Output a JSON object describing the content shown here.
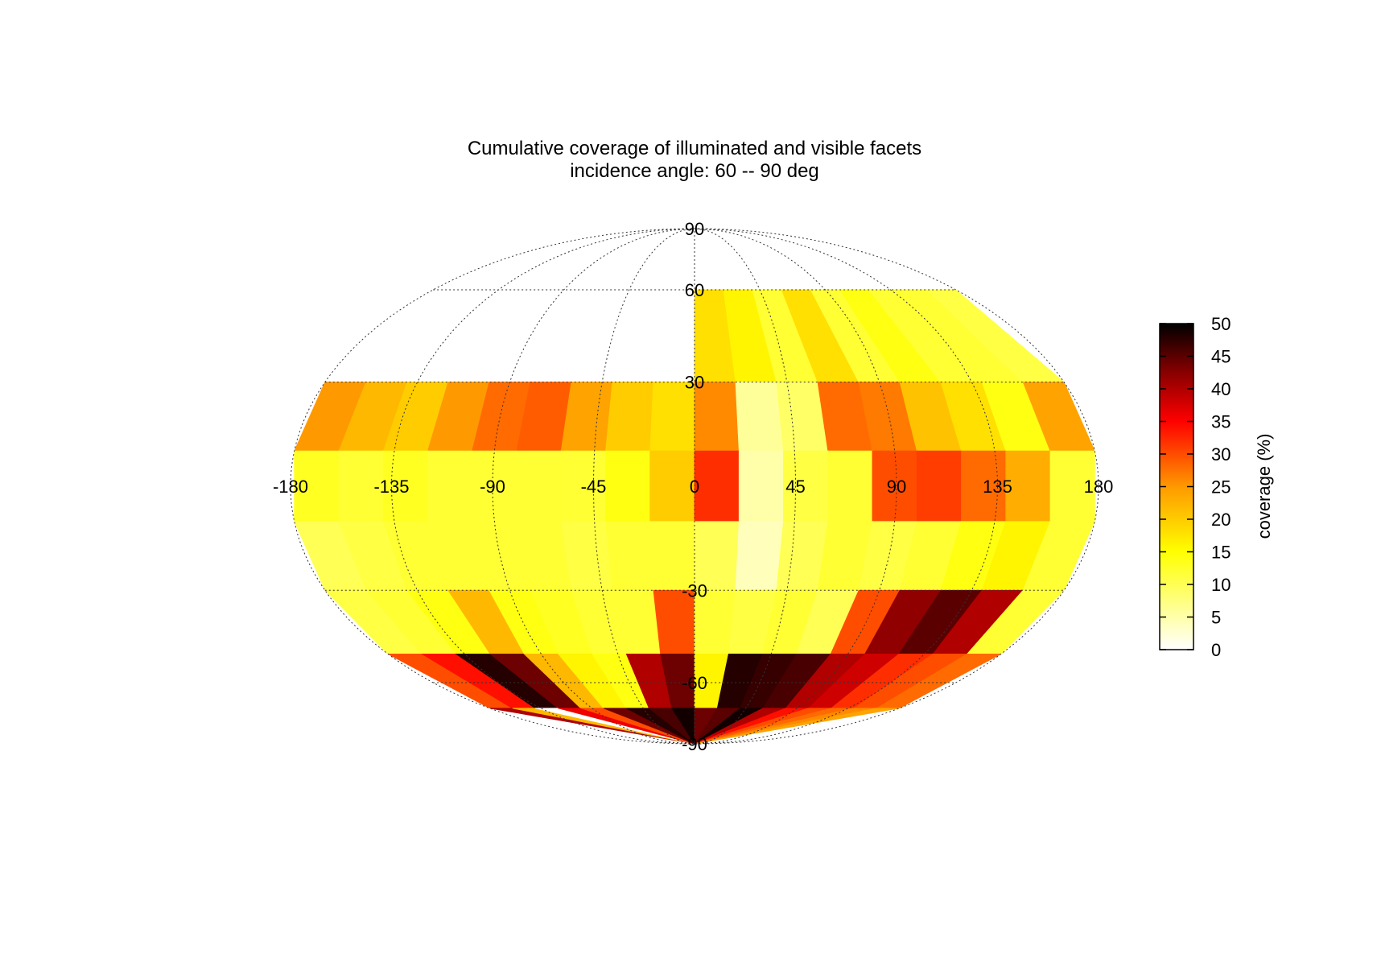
{
  "chart_data": {
    "type": "heatmap",
    "projection": "Mollweide (global map of facets)",
    "title": "Cumulative coverage of illuminated and visible facets",
    "subtitle": "incidence angle: 60 -- 90 deg",
    "x_ticks": [
      -180,
      -135,
      -90,
      -45,
      0,
      45,
      90,
      135,
      180
    ],
    "y_ticks": [
      90,
      60,
      30,
      -30,
      -60,
      -90
    ],
    "xlim": [
      -180,
      180
    ],
    "ylim": [
      -90,
      90
    ],
    "grid": true,
    "colorbar": {
      "label": "coverage (%)",
      "range": [
        0,
        50
      ],
      "ticks": [
        0,
        5,
        10,
        15,
        20,
        25,
        30,
        35,
        40,
        45,
        50
      ],
      "colormap": "hot (white → yellow → orange → red → black)",
      "colors": [
        "#ffffff",
        "#ffff00",
        "#ff9900",
        "#ff0000",
        "#880000",
        "#000000"
      ]
    },
    "lat_bands": [
      {
        "lat_range": [
          60,
          90
        ],
        "coverage_pct": [
          null,
          null,
          null,
          null,
          null,
          null,
          null,
          null,
          null,
          null,
          null,
          null,
          null,
          null,
          null,
          null,
          null,
          null
        ]
      },
      {
        "lat_range": [
          30,
          60
        ],
        "coverage_pct": [
          null,
          null,
          null,
          null,
          null,
          null,
          null,
          null,
          null,
          18,
          16,
          12,
          18,
          12,
          14,
          12,
          12,
          11
        ]
      },
      {
        "lat_range": [
          10,
          30
        ],
        "coverage_pct": [
          25,
          22,
          20,
          25,
          28,
          29,
          24,
          20,
          18,
          26,
          6,
          9,
          28,
          27,
          21,
          18,
          14,
          24
        ]
      },
      {
        "lat_range": [
          -10,
          10
        ],
        "coverage_pct": [
          13,
          12,
          13,
          12,
          12,
          12,
          12,
          14,
          20,
          32,
          5,
          11,
          12,
          30,
          31,
          28,
          23,
          12
        ]
      },
      {
        "lat_range": [
          -30,
          -10
        ],
        "coverage_pct": [
          10,
          11,
          12,
          12,
          12,
          12,
          11,
          12,
          12,
          10,
          4,
          10,
          12,
          11,
          12,
          14,
          16,
          12
        ]
      },
      {
        "lat_range": [
          -50,
          -30
        ],
        "coverage_pct": [
          11,
          12,
          14,
          22,
          14,
          13,
          12,
          12,
          30,
          12,
          11,
          12,
          10,
          30,
          42,
          45,
          40,
          12
        ]
      },
      {
        "lat_range": [
          -70,
          -50
        ],
        "coverage_pct": [
          30,
          34,
          48,
          44,
          22,
          16,
          14,
          40,
          44,
          16,
          48,
          47,
          46,
          40,
          38,
          32,
          30,
          28
        ]
      },
      {
        "lat_range": [
          -90,
          -70
        ],
        "coverage_pct": [
          40,
          22,
          0,
          36,
          30,
          44,
          48,
          46,
          49,
          44,
          45,
          49,
          40,
          34,
          30,
          28,
          26,
          24
        ]
      }
    ]
  }
}
